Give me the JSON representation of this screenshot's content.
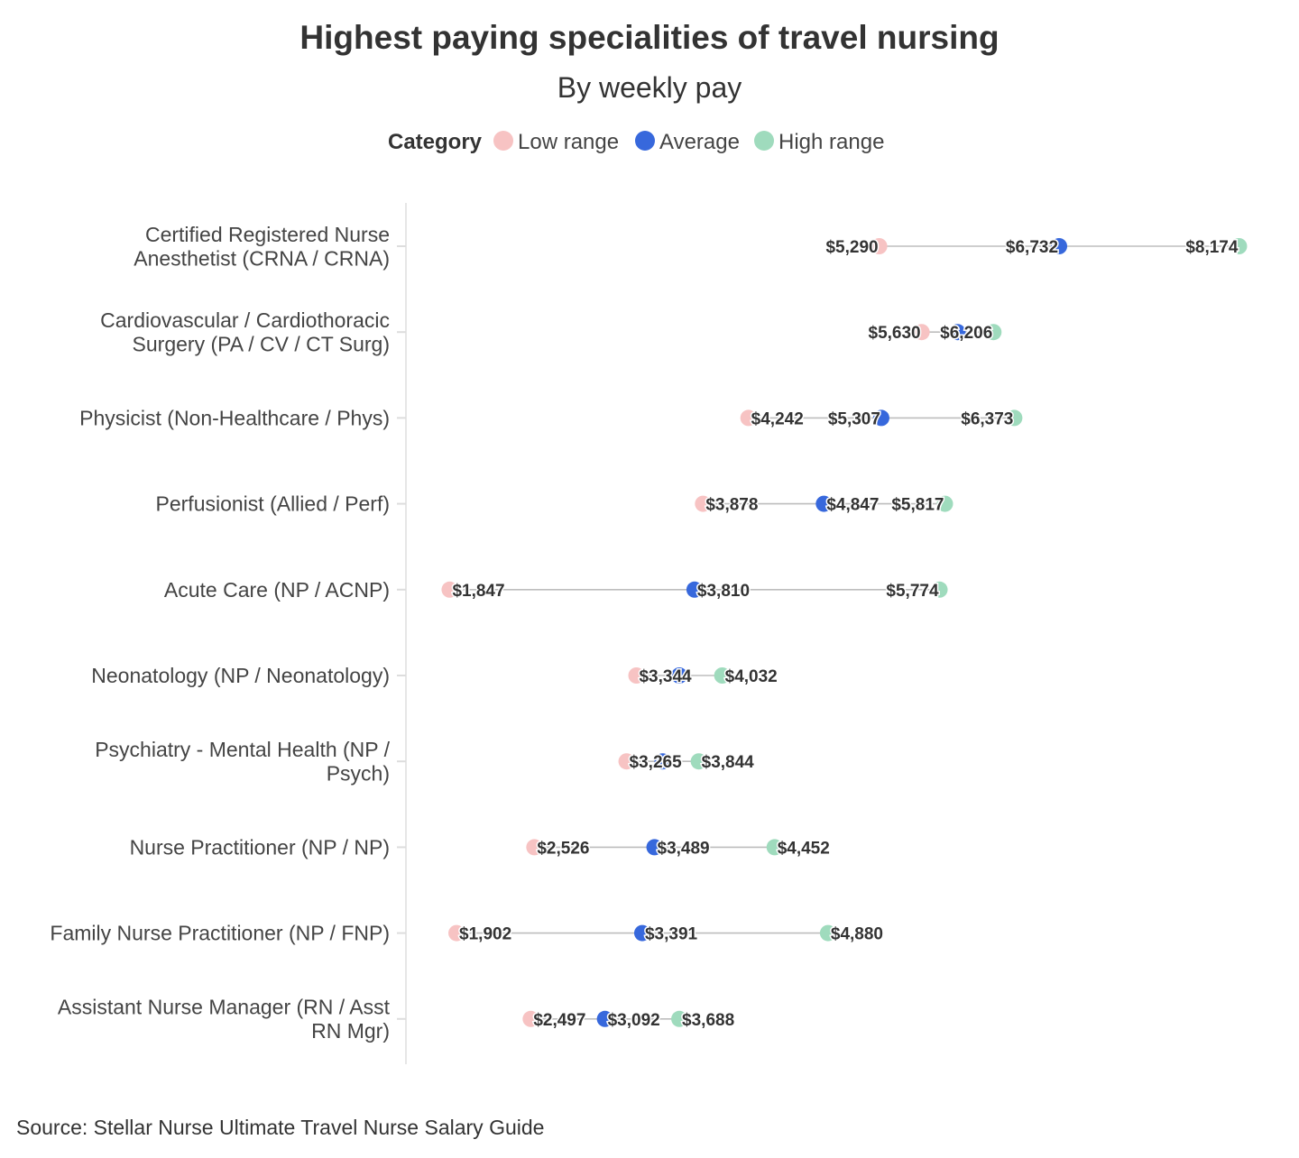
{
  "chart_data": {
    "type": "dumbbell",
    "title": "Highest paying specialities of travel nursing",
    "subtitle": "By weekly pay",
    "legend": {
      "title": "Category",
      "placement": "top",
      "entries": [
        {
          "name": "Low range",
          "color": "#f7c3c3"
        },
        {
          "name": "Average",
          "color": "#3768dc"
        },
        {
          "name": "High range",
          "color": "#9fdbbd"
        }
      ]
    },
    "categories": [
      [
        "Certified Registered Nurse",
        "Anesthetist (CRNA / CRNA)"
      ],
      [
        "Cardiovascular / Cardiothoracic",
        "Surgery (PA / CV / CT Surg)"
      ],
      [
        "Physicist (Non-Healthcare / Phys)"
      ],
      [
        "Perfusionist (Allied / Perf)"
      ],
      [
        "Acute Care (NP / ACNP)"
      ],
      [
        "Neonatology (NP / Neonatology)"
      ],
      [
        "Psychiatry - Mental Health (NP /",
        "Psych)"
      ],
      [
        "Nurse Practitioner (NP / NP)"
      ],
      [
        "Family Nurse Practitioner (NP / FNP)"
      ],
      [
        "Assistant Nurse Manager (RN / Asst",
        "RN Mgr)"
      ]
    ],
    "series": [
      {
        "name": "Low range",
        "values": [
          5290,
          5630,
          4242,
          3878,
          1847,
          3344,
          3265,
          2526,
          1902,
          2497
        ]
      },
      {
        "name": "Average",
        "values": [
          6732,
          5918,
          5307,
          4847,
          3810,
          3688,
          3554,
          3489,
          3391,
          3092
        ]
      },
      {
        "name": "High range",
        "values": [
          8174,
          6206,
          6373,
          5817,
          5774,
          4032,
          3844,
          4452,
          4880,
          3688
        ]
      }
    ],
    "value_format": "$#,###",
    "x_range": [
      1500,
      8300
    ],
    "grid": false,
    "source": "Source: Stellar Nurse Ultimate Travel Nurse Salary Guide"
  }
}
